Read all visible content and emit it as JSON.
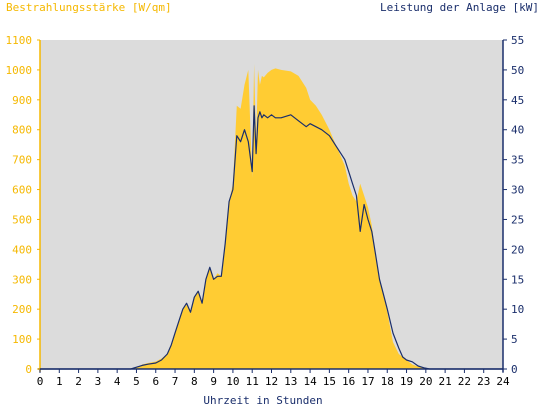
{
  "chart_data": {
    "type": "area",
    "left_axis_title": "Bestrahlungsstärke [W/qm]",
    "right_axis_title": "Leistung der Anlage [kW]",
    "xlabel": "Uhrzeit in Stunden",
    "x_ticks": [
      "0",
      "1",
      "2",
      "3",
      "4",
      "5",
      "6",
      "7",
      "8",
      "9",
      "10",
      "11",
      "12",
      "13",
      "14",
      "15",
      "16",
      "17",
      "18",
      "19",
      "20",
      "21",
      "22",
      "23",
      "24"
    ],
    "y_left_ticks": [
      "0",
      "100",
      "200",
      "300",
      "400",
      "500",
      "600",
      "700",
      "800",
      "900",
      "1000",
      "1100"
    ],
    "y_right_ticks": [
      "0",
      "5",
      "10",
      "15",
      "20",
      "25",
      "30",
      "35",
      "40",
      "45",
      "50",
      "55"
    ],
    "xlim": [
      0,
      24
    ],
    "ylim_left": [
      0,
      1100
    ],
    "ylim_right": [
      0,
      55
    ],
    "grid": false,
    "colors": {
      "plot_background": "#dcdcdc",
      "irradiance_fill": "#ffcc33",
      "power_line": "#1a2e6b",
      "left_axis_text": "#f5b800",
      "right_axis_text": "#1a2e6b"
    },
    "series": [
      {
        "name": "Bestrahlungsstärke [W/qm]",
        "axis": "left",
        "kind": "area",
        "x": [
          0,
          4.7,
          5.0,
          5.3,
          5.6,
          6.0,
          6.3,
          6.6,
          6.8,
          7.0,
          7.2,
          7.4,
          7.6,
          7.8,
          8.0,
          8.2,
          8.4,
          8.6,
          8.8,
          9.0,
          9.2,
          9.4,
          9.6,
          9.8,
          10.0,
          10.2,
          10.4,
          10.6,
          10.8,
          11.0,
          11.1,
          11.2,
          11.3,
          11.4,
          11.5,
          11.6,
          11.8,
          12.0,
          12.2,
          12.5,
          13.0,
          13.4,
          13.8,
          14.0,
          14.3,
          14.6,
          15.0,
          15.4,
          15.8,
          16.0,
          16.2,
          16.4,
          16.6,
          16.8,
          17.0,
          17.2,
          17.4,
          17.6,
          17.8,
          18.0,
          18.3,
          18.6,
          18.8,
          19.0,
          19.3,
          19.6,
          19.9,
          20.2,
          20.5,
          24
        ],
        "values": [
          0,
          0,
          5,
          15,
          20,
          25,
          35,
          50,
          80,
          120,
          160,
          200,
          215,
          190,
          240,
          260,
          220,
          300,
          340,
          300,
          320,
          310,
          420,
          560,
          620,
          880,
          870,
          950,
          1000,
          640,
          1020,
          760,
          1000,
          950,
          980,
          975,
          990,
          1000,
          1005,
          1000,
          995,
          980,
          940,
          900,
          880,
          850,
          800,
          740,
          680,
          620,
          580,
          560,
          620,
          580,
          540,
          480,
          380,
          300,
          250,
          190,
          90,
          50,
          40,
          30,
          15,
          8,
          3,
          0,
          0,
          0
        ],
        "values_are_estimates": true
      },
      {
        "name": "Leistung der Anlage [kW]",
        "axis": "right",
        "kind": "line",
        "x": [
          0,
          4.7,
          5.0,
          5.3,
          5.6,
          6.0,
          6.3,
          6.6,
          6.8,
          7.0,
          7.2,
          7.4,
          7.6,
          7.8,
          8.0,
          8.2,
          8.4,
          8.6,
          8.8,
          9.0,
          9.2,
          9.4,
          9.6,
          9.8,
          10.0,
          10.2,
          10.4,
          10.6,
          10.8,
          11.0,
          11.1,
          11.2,
          11.3,
          11.4,
          11.5,
          11.6,
          11.8,
          12.0,
          12.2,
          12.5,
          13.0,
          13.4,
          13.8,
          14.0,
          14.3,
          14.6,
          15.0,
          15.4,
          15.8,
          16.0,
          16.2,
          16.4,
          16.6,
          16.8,
          17.0,
          17.2,
          17.4,
          17.6,
          17.8,
          18.0,
          18.3,
          18.6,
          18.8,
          19.0,
          19.3,
          19.6,
          19.9,
          20.2,
          20.5,
          24
        ],
        "values": [
          0,
          0,
          0.3,
          0.6,
          0.8,
          1.0,
          1.5,
          2.5,
          4.0,
          6.0,
          8.0,
          10.0,
          11.0,
          9.5,
          12.0,
          13.0,
          11.0,
          15.0,
          17.0,
          15.0,
          15.5,
          15.5,
          21.0,
          28.0,
          30.0,
          39.0,
          38.0,
          40.0,
          38.0,
          33.0,
          44.0,
          36.0,
          42.0,
          43.0,
          42.0,
          42.5,
          42.0,
          42.5,
          42.0,
          42.0,
          42.5,
          41.5,
          40.5,
          41.0,
          40.5,
          40.0,
          39.0,
          37.0,
          35.0,
          33.0,
          31.0,
          29.0,
          23.0,
          27.5,
          25.0,
          23.0,
          19.0,
          15.0,
          12.5,
          10.0,
          6.0,
          3.5,
          2.0,
          1.5,
          1.2,
          0.5,
          0.2,
          0,
          0,
          0
        ],
        "values_are_estimates": true
      }
    ]
  }
}
